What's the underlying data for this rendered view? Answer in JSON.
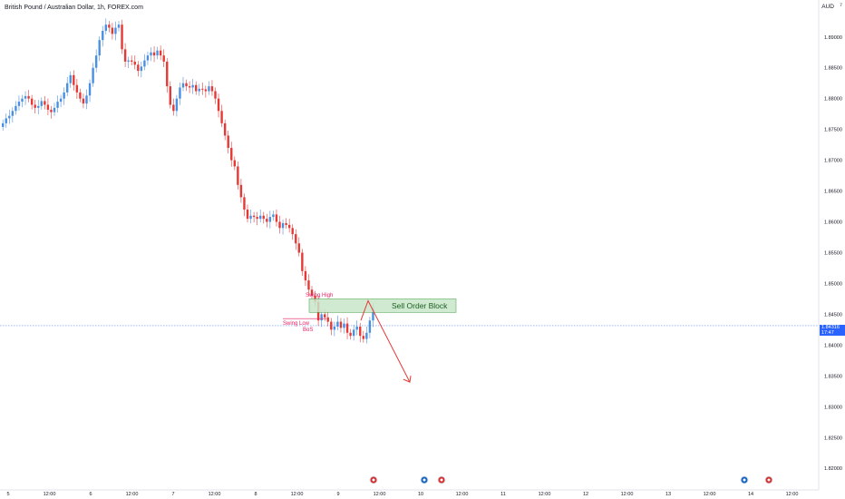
{
  "header": {
    "symbol_title": "British Pound / Australian Dollar, 1h, FOREX.com",
    "currency": "AUD",
    "flag_glyph": "⁷"
  },
  "last_price": {
    "value": "1.84316",
    "countdown": "17:47"
  },
  "colors": {
    "up": "#4a90e2",
    "down": "#e53935",
    "zone_fill": "#c8e6c9",
    "zone_stroke": "#43a047",
    "annotation": "#e91e63",
    "arrow": "#e53935",
    "last_price_line": "#2962ff"
  },
  "chart_data": {
    "type": "candlestick",
    "interval": "1h",
    "ylim": [
      1.8165,
      1.896
    ],
    "y_ticks": [
      "1.89000",
      "1.88500",
      "1.88000",
      "1.87500",
      "1.87000",
      "1.86500",
      "1.86000",
      "1.85500",
      "1.85000",
      "1.84500",
      "1.84000",
      "1.83500",
      "1.83000",
      "1.82500",
      "1.82000"
    ],
    "x_ticks": [
      "5",
      "12:00",
      "6",
      "12:00",
      "7",
      "12:00",
      "8",
      "12:00",
      "9",
      "12:00",
      "10",
      "12:00",
      "11",
      "12:00",
      "12",
      "12:00",
      "13",
      "12:00",
      "14",
      "12:00"
    ],
    "ohlc_closes": [
      1.876,
      1.8768,
      1.8772,
      1.878,
      1.8788,
      1.8795,
      1.88,
      1.8804,
      1.88,
      1.879,
      1.8785,
      1.8788,
      1.8796,
      1.879,
      1.8782,
      1.8778,
      1.8785,
      1.8795,
      1.88,
      1.881,
      1.8825,
      1.8838,
      1.8822,
      1.881,
      1.88,
      1.8792,
      1.8805,
      1.8825,
      1.885,
      1.887,
      1.8895,
      1.891,
      1.892,
      1.8915,
      1.8905,
      1.8915,
      1.892,
      1.888,
      1.886,
      1.8862,
      1.886,
      1.8855,
      1.8845,
      1.8852,
      1.8862,
      1.887,
      1.8875,
      1.887,
      1.8878,
      1.887,
      1.886,
      1.882,
      1.879,
      1.878,
      1.88,
      1.8818,
      1.8825,
      1.882,
      1.8818,
      1.8822,
      1.8812,
      1.8816,
      1.8815,
      1.8812,
      1.882,
      1.8812,
      1.88,
      1.878,
      1.876,
      1.874,
      1.872,
      1.87,
      1.869,
      1.866,
      1.864,
      1.862,
      1.8605,
      1.861,
      1.8608,
      1.8605,
      1.861,
      1.8605,
      1.86,
      1.8608,
      1.8612,
      1.86,
      1.859,
      1.8598,
      1.8595,
      1.859,
      1.858,
      1.8565,
      1.855,
      1.852,
      1.8505,
      1.849,
      1.848,
      1.847,
      1.844,
      1.845,
      1.8445,
      1.8438,
      1.8425,
      1.843,
      1.8438,
      1.8428,
      1.8435,
      1.842,
      1.8415,
      1.8425,
      1.843,
      1.8415,
      1.841,
      1.842,
      1.844,
      1.846
    ]
  },
  "annotations": {
    "swing_high": "Swing High",
    "swing_low": "Swing Low",
    "bos": "BoS",
    "zone_label": "Sell Order Block"
  },
  "event_icons": [
    "uk-flag-icon",
    "australia-flag-icon",
    "uk-flag-icon",
    "australia-flag-icon",
    "uk-flag-icon"
  ]
}
